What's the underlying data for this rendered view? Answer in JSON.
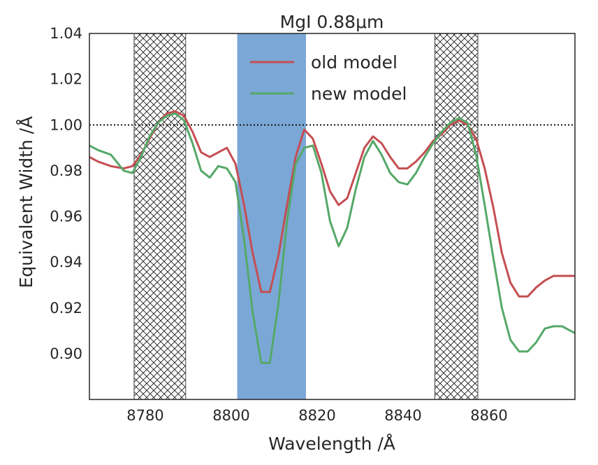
{
  "chart_data": {
    "type": "line",
    "title": "MgI 0.88μm",
    "xlabel": "Wavelength /Å",
    "ylabel": "Equivalent Width /Å",
    "xlim": [
      8767,
      8880
    ],
    "ylim": [
      0.88,
      1.04
    ],
    "xticks": [
      8780,
      8800,
      8820,
      8840,
      8860
    ],
    "yticks": [
      0.9,
      0.92,
      0.94,
      0.96,
      0.98,
      1.0,
      1.02,
      1.04
    ],
    "ytick_labels": [
      "0.90",
      "0.92",
      "0.94",
      "0.96",
      "0.98",
      "1.00",
      "1.02",
      "1.04"
    ],
    "grid": false,
    "legend_location": "top-center",
    "reference_line": {
      "y": 1.0,
      "style": "dotted",
      "color": "#000000"
    },
    "shaded_regions": [
      {
        "kind": "continuum",
        "x0": 8777.4,
        "x1": 8789.4,
        "fill": "hatch"
      },
      {
        "kind": "feature",
        "x0": 8801.4,
        "x1": 8817.4,
        "fill": "#7ba7d6"
      },
      {
        "kind": "continuum",
        "x0": 8847.4,
        "x1": 8857.4,
        "fill": "hatch"
      }
    ],
    "series": [
      {
        "name": "old model",
        "color": "#c44e52",
        "x": [
          8767,
          8769,
          8772,
          8775,
          8777,
          8779,
          8781,
          8783,
          8785,
          8787,
          8789,
          8791,
          8793,
          8795,
          8797,
          8799,
          8801,
          8803,
          8805,
          8807,
          8809,
          8811,
          8813,
          8815,
          8817,
          8819,
          8821,
          8823,
          8825,
          8827,
          8829,
          8831,
          8833,
          8835,
          8837,
          8839,
          8841,
          8843,
          8845,
          8847,
          8849,
          8851,
          8853,
          8855,
          8857,
          8859,
          8861,
          8863,
          8865,
          8867,
          8869,
          8871,
          8873,
          8875,
          8877,
          8879,
          8880
        ],
        "values": [
          0.986,
          0.984,
          0.982,
          0.981,
          0.982,
          0.987,
          0.994,
          1.001,
          1.005,
          1.006,
          1.004,
          0.997,
          0.988,
          0.986,
          0.988,
          0.99,
          0.983,
          0.965,
          0.944,
          0.927,
          0.927,
          0.943,
          0.965,
          0.986,
          0.998,
          0.994,
          0.983,
          0.971,
          0.965,
          0.968,
          0.979,
          0.99,
          0.995,
          0.992,
          0.986,
          0.981,
          0.981,
          0.984,
          0.988,
          0.993,
          0.996,
          1.0,
          1.002,
          1.0,
          0.994,
          0.981,
          0.964,
          0.944,
          0.931,
          0.925,
          0.925,
          0.929,
          0.932,
          0.934,
          0.934,
          0.934,
          0.934
        ]
      },
      {
        "name": "new model",
        "color": "#55a868",
        "x": [
          8767,
          8769,
          8772,
          8775,
          8777,
          8779,
          8781,
          8783,
          8785,
          8787,
          8789,
          8791,
          8793,
          8795,
          8797,
          8799,
          8801,
          8803,
          8805,
          8807,
          8809,
          8811,
          8813,
          8815,
          8817,
          8819,
          8821,
          8823,
          8825,
          8827,
          8829,
          8831,
          8833,
          8835,
          8837,
          8839,
          8841,
          8843,
          8845,
          8847,
          8849,
          8851,
          8853,
          8855,
          8857,
          8859,
          8861,
          8863,
          8865,
          8867,
          8869,
          8871,
          8873,
          8875,
          8877,
          8879,
          8880
        ],
        "values": [
          0.991,
          0.989,
          0.987,
          0.98,
          0.979,
          0.986,
          0.995,
          1.001,
          1.004,
          1.005,
          1.002,
          0.992,
          0.98,
          0.977,
          0.982,
          0.981,
          0.975,
          0.95,
          0.918,
          0.896,
          0.896,
          0.922,
          0.958,
          0.983,
          0.99,
          0.991,
          0.979,
          0.958,
          0.947,
          0.955,
          0.972,
          0.986,
          0.993,
          0.987,
          0.979,
          0.975,
          0.974,
          0.979,
          0.986,
          0.992,
          0.997,
          1.001,
          1.003,
          1.001,
          0.987,
          0.965,
          0.942,
          0.92,
          0.906,
          0.901,
          0.901,
          0.905,
          0.911,
          0.912,
          0.912,
          0.91,
          0.909
        ]
      }
    ]
  }
}
